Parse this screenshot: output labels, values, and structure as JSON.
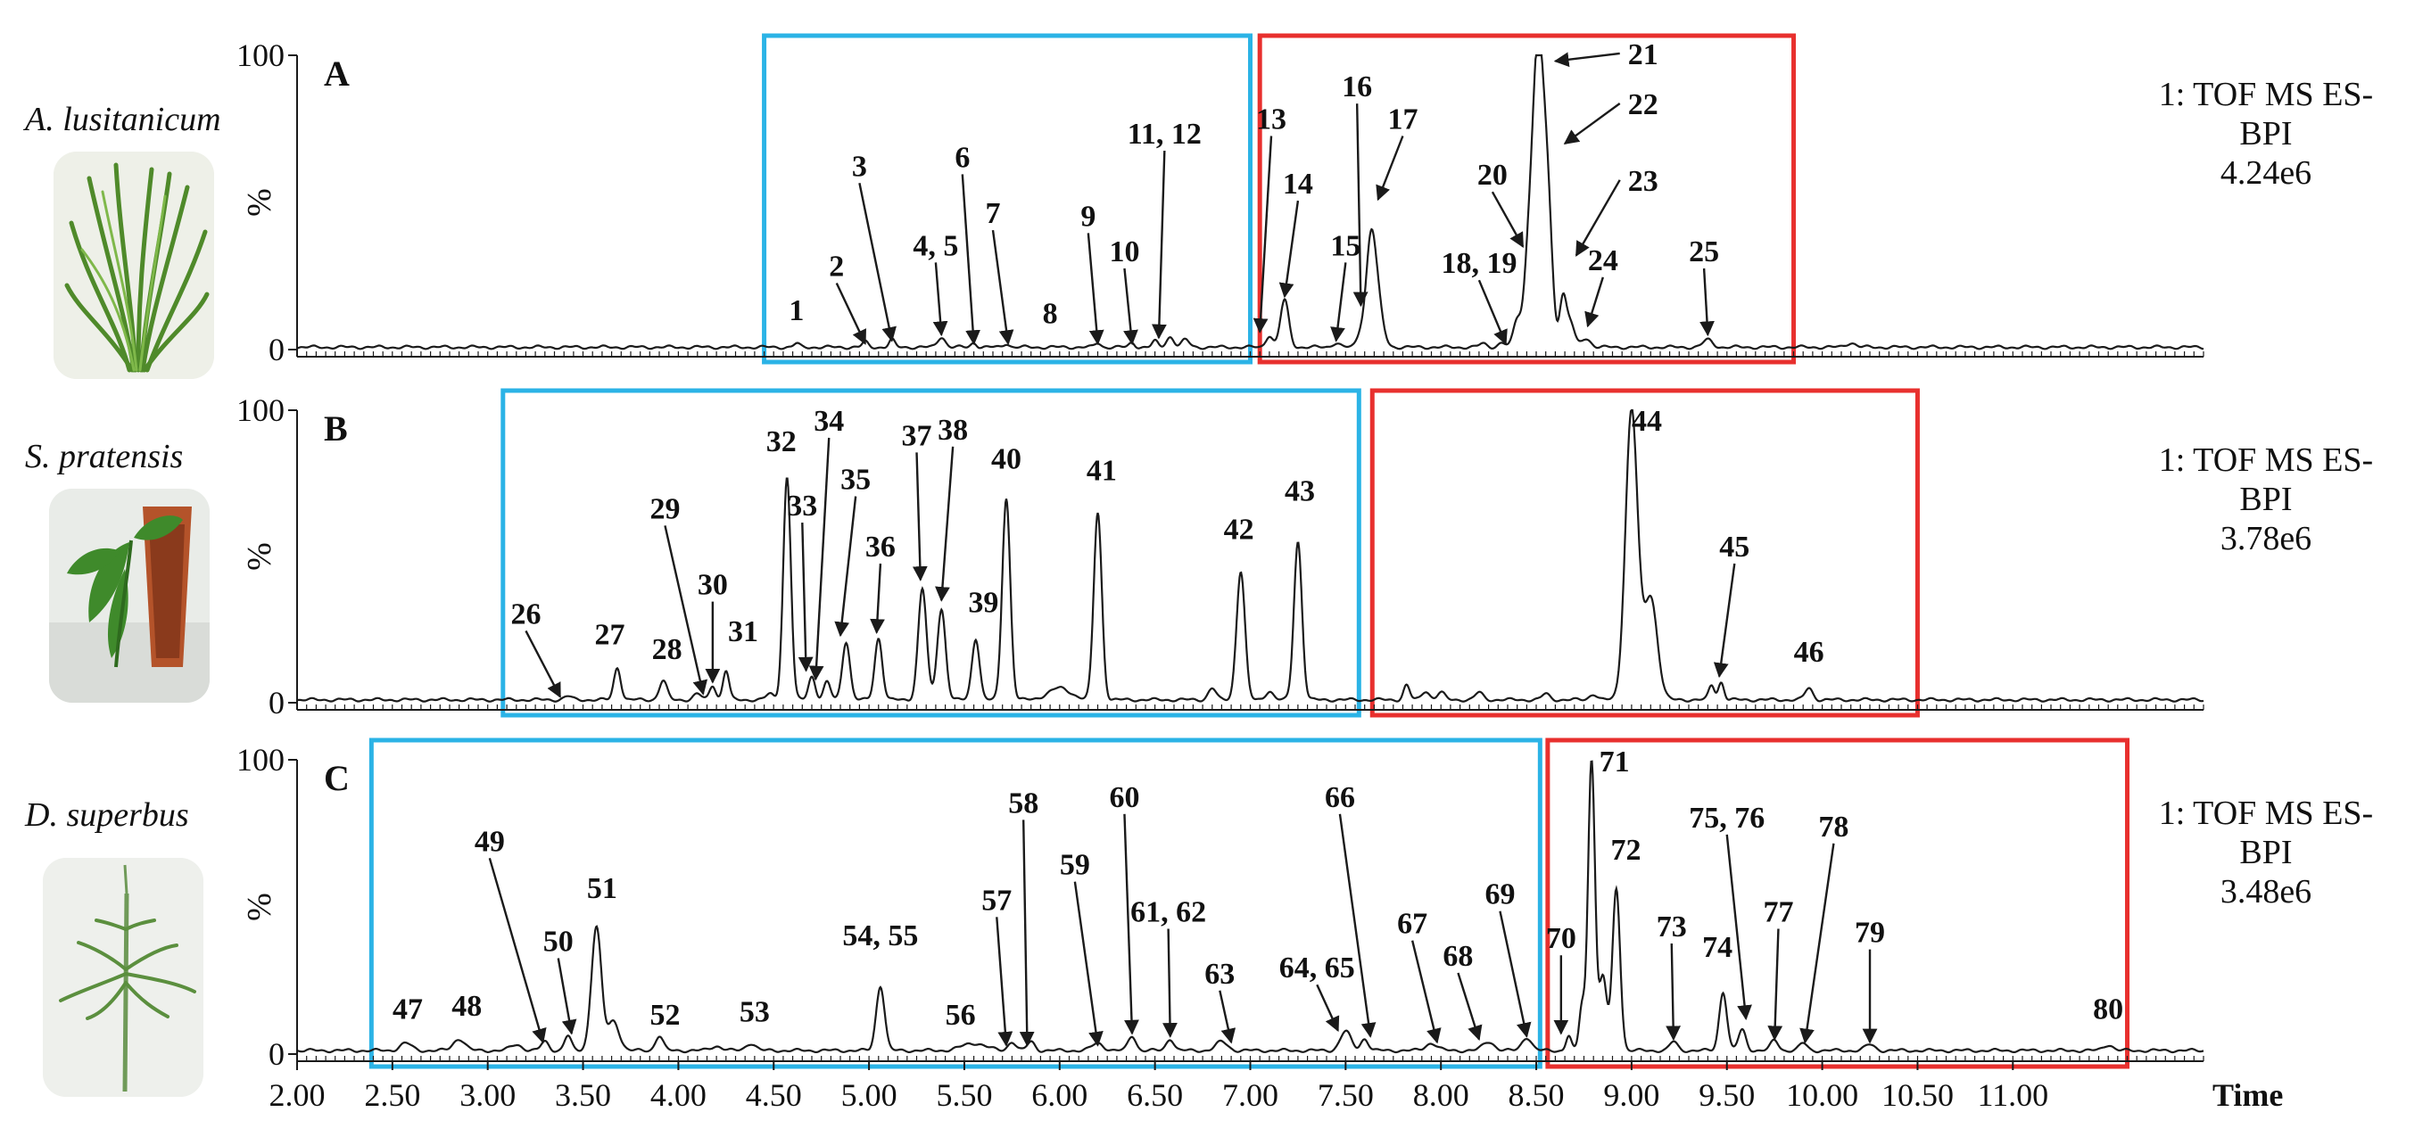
{
  "colors": {
    "trace": "#1a1a1a",
    "box_blue": "#2bb3e6",
    "box_red": "#e8302e",
    "text": "#111111"
  },
  "chart_data": {
    "type": "line",
    "title": "",
    "xlabel": "Time",
    "xlim": [
      2.0,
      12.0
    ],
    "x_ticks": [
      2.0,
      2.5,
      3.0,
      3.5,
      4.0,
      4.5,
      5.0,
      5.5,
      6.0,
      6.5,
      7.0,
      7.5,
      8.0,
      8.5,
      9.0,
      9.5,
      10.0,
      10.5,
      11.0
    ],
    "x_tick_labels": [
      "2.00",
      "2.50",
      "3.00",
      "3.50",
      "4.00",
      "4.50",
      "5.00",
      "5.50",
      "6.00",
      "6.50",
      "7.00",
      "7.50",
      "8.00",
      "8.50",
      "9.00",
      "9.50",
      "10.00",
      "10.50",
      "11.00"
    ],
    "y_tick_labels": [
      "100",
      "%",
      "0"
    ],
    "panels": [
      {
        "id": "A",
        "species": "A. lusitanicum",
        "detector": [
          "1: TOF MS ES-",
          "BPI",
          "4.24e6"
        ],
        "plant_icon": "plant-photo-icon",
        "baseline": 0.8,
        "boxes": [
          {
            "color": "blue",
            "x_range": [
              4.45,
              7.0
            ]
          },
          {
            "color": "red",
            "x_range": [
              7.05,
              9.85
            ]
          }
        ],
        "peaks": [
          [
            4.62,
            1.2,
            0.015
          ],
          [
            4.98,
            1.8,
            0.015
          ],
          [
            5.12,
            2.5,
            0.015
          ],
          [
            5.38,
            3.5,
            0.02
          ],
          [
            5.55,
            1.5,
            0.015
          ],
          [
            5.72,
            1.3,
            0.015
          ],
          [
            6.2,
            1.5,
            0.015
          ],
          [
            6.38,
            1.5,
            0.015
          ],
          [
            6.5,
            2.0,
            0.015
          ],
          [
            6.58,
            3.5,
            0.02
          ],
          [
            6.66,
            2.5,
            0.02
          ],
          [
            7.1,
            4.0,
            0.018
          ],
          [
            7.18,
            16.0,
            0.022
          ],
          [
            7.45,
            1.5,
            0.02
          ],
          [
            7.58,
            4.5,
            0.02
          ],
          [
            7.63,
            28.0,
            0.024
          ],
          [
            7.66,
            18.0,
            0.03
          ],
          [
            8.22,
            1.2,
            0.02
          ],
          [
            8.32,
            1.5,
            0.02
          ],
          [
            8.4,
            9.0,
            0.02
          ],
          [
            8.46,
            28.0,
            0.024
          ],
          [
            8.51,
            99.0,
            0.028
          ],
          [
            8.56,
            45.0,
            0.024
          ],
          [
            8.64,
            17.0,
            0.018
          ],
          [
            8.68,
            8.0,
            0.02
          ],
          [
            8.76,
            3.0,
            0.025
          ],
          [
            9.4,
            2.5,
            0.025
          ],
          [
            10.15,
            1.5,
            0.025
          ]
        ],
        "labels": [
          {
            "text": "1",
            "tx": 4.62,
            "ty": 10
          },
          {
            "text": "2",
            "tx": 4.83,
            "ty": 25,
            "ax": 4.98,
            "ay": 2
          },
          {
            "text": "3",
            "tx": 4.95,
            "ty": 59,
            "ax": 5.12,
            "ay": 3
          },
          {
            "text": "4, 5",
            "tx": 5.35,
            "ty": 32,
            "ax": 5.38,
            "ay": 5
          },
          {
            "text": "6",
            "tx": 5.49,
            "ty": 62,
            "ax": 5.55,
            "ay": 2
          },
          {
            "text": "7",
            "tx": 5.65,
            "ty": 43,
            "ax": 5.73,
            "ay": 2
          },
          {
            "text": "8",
            "tx": 5.95,
            "ty": 9
          },
          {
            "text": "9",
            "tx": 6.15,
            "ty": 42,
            "ax": 6.2,
            "ay": 2
          },
          {
            "text": "10",
            "tx": 6.34,
            "ty": 30,
            "ax": 6.38,
            "ay": 2
          },
          {
            "text": "11, 12",
            "tx": 6.55,
            "ty": 70,
            "ax": 6.52,
            "ay": 4
          },
          {
            "text": "13",
            "tx": 7.11,
            "ty": 75,
            "ax": 7.05,
            "ay": 6
          },
          {
            "text": "14",
            "tx": 7.25,
            "ty": 53,
            "ax": 7.18,
            "ay": 18
          },
          {
            "text": "15",
            "tx": 7.5,
            "ty": 32,
            "ax": 7.45,
            "ay": 3
          },
          {
            "text": "16",
            "tx": 7.56,
            "ty": 86,
            "ax": 7.58,
            "ay": 15
          },
          {
            "text": "17",
            "tx": 7.8,
            "ty": 75,
            "ax": 7.67,
            "ay": 51
          },
          {
            "text": "18, 19",
            "tx": 8.2,
            "ty": 26,
            "ax": 8.34,
            "ay": 2
          },
          {
            "text": "20",
            "tx": 8.27,
            "ty": 56,
            "ax": 8.43,
            "ay": 35
          },
          {
            "text": "21",
            "tx": 9.06,
            "ty": 97,
            "ax": 8.6,
            "ay": 98
          },
          {
            "text": "22",
            "tx": 9.06,
            "ty": 80,
            "ax": 8.65,
            "ay": 70
          },
          {
            "text": "23",
            "tx": 9.06,
            "ty": 54,
            "ax": 8.71,
            "ay": 32
          },
          {
            "text": "24",
            "tx": 8.85,
            "ty": 27,
            "ax": 8.77,
            "ay": 8
          },
          {
            "text": "25",
            "tx": 9.38,
            "ty": 30,
            "ax": 9.4,
            "ay": 5
          }
        ]
      },
      {
        "id": "B",
        "species": "S. pratensis",
        "detector": [
          "1: TOF MS ES-",
          "BPI",
          "3.78e6"
        ],
        "plant_icon": "plant-photo-icon",
        "baseline": 1.0,
        "boxes": [
          {
            "color": "blue",
            "x_range": [
              3.08,
              7.57
            ]
          },
          {
            "color": "red",
            "x_range": [
              7.64,
              10.5
            ]
          }
        ],
        "peaks": [
          [
            3.42,
            1.2,
            0.02
          ],
          [
            3.68,
            11.0,
            0.018
          ],
          [
            3.92,
            6.5,
            0.02
          ],
          [
            4.1,
            2.0,
            0.02
          ],
          [
            4.18,
            5.0,
            0.016
          ],
          [
            4.25,
            10.0,
            0.016
          ],
          [
            4.48,
            2.0,
            0.02
          ],
          [
            4.57,
            76.0,
            0.02
          ],
          [
            4.7,
            8.0,
            0.018
          ],
          [
            4.78,
            6.0,
            0.018
          ],
          [
            4.88,
            20.0,
            0.02
          ],
          [
            5.05,
            21.0,
            0.02
          ],
          [
            5.28,
            38.0,
            0.022
          ],
          [
            5.38,
            31.0,
            0.022
          ],
          [
            5.56,
            21.0,
            0.02
          ],
          [
            5.72,
            69.0,
            0.021
          ],
          [
            6.0,
            4.0,
            0.06
          ],
          [
            6.2,
            64.0,
            0.021
          ],
          [
            6.8,
            4.0,
            0.02
          ],
          [
            6.95,
            44.0,
            0.022
          ],
          [
            7.1,
            3.0,
            0.02
          ],
          [
            7.25,
            54.0,
            0.021
          ],
          [
            7.82,
            5.0,
            0.016
          ],
          [
            7.92,
            3.0,
            0.02
          ],
          [
            8.0,
            2.5,
            0.02
          ],
          [
            8.2,
            2.5,
            0.02
          ],
          [
            8.55,
            2.0,
            0.02
          ],
          [
            8.8,
            2.0,
            0.02
          ],
          [
            9.0,
            99.0,
            0.032
          ],
          [
            9.1,
            35.0,
            0.035
          ],
          [
            9.42,
            5.0,
            0.015
          ],
          [
            9.47,
            6.0,
            0.015
          ],
          [
            9.93,
            4.0,
            0.02
          ]
        ],
        "labels": [
          {
            "text": "26",
            "tx": 3.2,
            "ty": 27,
            "ax": 3.38,
            "ay": 2
          },
          {
            "text": "27",
            "tx": 3.64,
            "ty": 20
          },
          {
            "text": "28",
            "tx": 3.94,
            "ty": 15
          },
          {
            "text": "29",
            "tx": 3.93,
            "ty": 63,
            "ax": 4.13,
            "ay": 3
          },
          {
            "text": "30",
            "tx": 4.18,
            "ty": 37,
            "ax": 4.18,
            "ay": 7
          },
          {
            "text": "31",
            "tx": 4.34,
            "ty": 21
          },
          {
            "text": "32",
            "tx": 4.54,
            "ty": 86
          },
          {
            "text": "33",
            "tx": 4.65,
            "ty": 64,
            "ax": 4.67,
            "ay": 11
          },
          {
            "text": "34",
            "tx": 4.79,
            "ty": 93,
            "ax": 4.72,
            "ay": 8
          },
          {
            "text": "35",
            "tx": 4.93,
            "ty": 73,
            "ax": 4.85,
            "ay": 23
          },
          {
            "text": "36",
            "tx": 5.06,
            "ty": 50,
            "ax": 5.04,
            "ay": 24
          },
          {
            "text": "37",
            "tx": 5.25,
            "ty": 88,
            "ax": 5.27,
            "ay": 42
          },
          {
            "text": "38",
            "tx": 5.44,
            "ty": 90,
            "ax": 5.38,
            "ay": 35
          },
          {
            "text": "39",
            "tx": 5.6,
            "ty": 31
          },
          {
            "text": "40",
            "tx": 5.72,
            "ty": 80
          },
          {
            "text": "41",
            "tx": 6.22,
            "ty": 76
          },
          {
            "text": "42",
            "tx": 6.94,
            "ty": 56
          },
          {
            "text": "43",
            "tx": 7.26,
            "ty": 69
          },
          {
            "text": "44",
            "tx": 9.08,
            "ty": 93
          },
          {
            "text": "45",
            "tx": 9.54,
            "ty": 50,
            "ax": 9.46,
            "ay": 9
          },
          {
            "text": "46",
            "tx": 9.93,
            "ty": 14
          }
        ]
      },
      {
        "id": "C",
        "species": "D. superbus",
        "detector": [
          "1: TOF MS ES-",
          "BPI",
          "3.48e6"
        ],
        "plant_icon": "plant-photo-icon",
        "baseline": 1.2,
        "boxes": [
          {
            "color": "blue",
            "x_range": [
              2.39,
              8.52
            ]
          },
          {
            "color": "red",
            "x_range": [
              8.56,
              11.6
            ]
          }
        ],
        "peaks": [
          [
            2.57,
            2.5,
            0.03
          ],
          [
            2.85,
            4.0,
            0.03
          ],
          [
            3.15,
            2.0,
            0.03
          ],
          [
            3.3,
            3.0,
            0.02
          ],
          [
            3.42,
            5.0,
            0.018
          ],
          [
            3.57,
            42.0,
            0.026
          ],
          [
            3.66,
            10.0,
            0.03
          ],
          [
            3.9,
            5.0,
            0.02
          ],
          [
            4.2,
            1.5,
            0.03
          ],
          [
            4.38,
            2.5,
            0.025
          ],
          [
            5.06,
            22.0,
            0.022
          ],
          [
            5.55,
            2.5,
            0.06
          ],
          [
            5.75,
            3.0,
            0.02
          ],
          [
            5.85,
            3.0,
            0.02
          ],
          [
            6.2,
            2.5,
            0.03
          ],
          [
            6.38,
            5.0,
            0.02
          ],
          [
            6.58,
            4.0,
            0.02
          ],
          [
            6.85,
            3.0,
            0.03
          ],
          [
            7.5,
            6.5,
            0.028
          ],
          [
            7.6,
            4.0,
            0.02
          ],
          [
            7.95,
            2.5,
            0.03
          ],
          [
            8.25,
            3.0,
            0.03
          ],
          [
            8.45,
            4.5,
            0.025
          ],
          [
            8.67,
            5.0,
            0.014
          ],
          [
            8.74,
            15.0,
            0.015
          ],
          [
            8.79,
            99.0,
            0.018
          ],
          [
            8.85,
            25.0,
            0.02
          ],
          [
            8.92,
            55.0,
            0.02
          ],
          [
            9.22,
            3.0,
            0.02
          ],
          [
            9.48,
            20.0,
            0.02
          ],
          [
            9.58,
            7.0,
            0.02
          ],
          [
            9.75,
            3.5,
            0.02
          ],
          [
            9.9,
            2.5,
            0.02
          ],
          [
            10.25,
            2.0,
            0.025
          ],
          [
            11.5,
            2.0,
            0.025
          ]
        ],
        "labels": [
          {
            "text": "47",
            "tx": 2.58,
            "ty": 12
          },
          {
            "text": "48",
            "tx": 2.89,
            "ty": 13
          },
          {
            "text": "49",
            "tx": 3.01,
            "ty": 69,
            "ax": 3.29,
            "ay": 4
          },
          {
            "text": "50",
            "tx": 3.37,
            "ty": 35,
            "ax": 3.44,
            "ay": 7
          },
          {
            "text": "51",
            "tx": 3.6,
            "ty": 53
          },
          {
            "text": "52",
            "tx": 3.93,
            "ty": 10
          },
          {
            "text": "53",
            "tx": 4.4,
            "ty": 11
          },
          {
            "text": "54, 55",
            "tx": 5.06,
            "ty": 37
          },
          {
            "text": "56",
            "tx": 5.48,
            "ty": 10
          },
          {
            "text": "57",
            "tx": 5.67,
            "ty": 49,
            "ax": 5.72,
            "ay": 3
          },
          {
            "text": "58",
            "tx": 5.81,
            "ty": 82,
            "ax": 5.83,
            "ay": 3
          },
          {
            "text": "59",
            "tx": 6.08,
            "ty": 61,
            "ax": 6.2,
            "ay": 3
          },
          {
            "text": "60",
            "tx": 6.34,
            "ty": 84,
            "ax": 6.38,
            "ay": 7
          },
          {
            "text": "61, 62",
            "tx": 6.57,
            "ty": 45,
            "ax": 6.58,
            "ay": 6
          },
          {
            "text": "63",
            "tx": 6.84,
            "ty": 24,
            "ax": 6.9,
            "ay": 4
          },
          {
            "text": "64, 65",
            "tx": 7.35,
            "ty": 26,
            "ax": 7.46,
            "ay": 8
          },
          {
            "text": "66",
            "tx": 7.47,
            "ty": 84,
            "ax": 7.63,
            "ay": 6
          },
          {
            "text": "67",
            "tx": 7.85,
            "ty": 41,
            "ax": 7.98,
            "ay": 4
          },
          {
            "text": "68",
            "tx": 8.09,
            "ty": 30,
            "ax": 8.2,
            "ay": 5
          },
          {
            "text": "69",
            "tx": 8.31,
            "ty": 51,
            "ax": 8.45,
            "ay": 6
          },
          {
            "text": "70",
            "tx": 8.63,
            "ty": 36,
            "ax": 8.63,
            "ay": 7
          },
          {
            "text": "71",
            "tx": 8.91,
            "ty": 96
          },
          {
            "text": "72",
            "tx": 8.97,
            "ty": 66
          },
          {
            "text": "73",
            "tx": 9.21,
            "ty": 40,
            "ax": 9.22,
            "ay": 5
          },
          {
            "text": "74",
            "tx": 9.45,
            "ty": 33
          },
          {
            "text": "75, 76",
            "tx": 9.5,
            "ty": 77,
            "ax": 9.6,
            "ay": 12
          },
          {
            "text": "77",
            "tx": 9.77,
            "ty": 45,
            "ax": 9.75,
            "ay": 5
          },
          {
            "text": "78",
            "tx": 10.06,
            "ty": 74,
            "ax": 9.91,
            "ay": 4
          },
          {
            "text": "79",
            "tx": 10.25,
            "ty": 38,
            "ax": 10.25,
            "ay": 4
          },
          {
            "text": "80",
            "tx": 11.5,
            "ty": 12
          }
        ]
      }
    ]
  }
}
